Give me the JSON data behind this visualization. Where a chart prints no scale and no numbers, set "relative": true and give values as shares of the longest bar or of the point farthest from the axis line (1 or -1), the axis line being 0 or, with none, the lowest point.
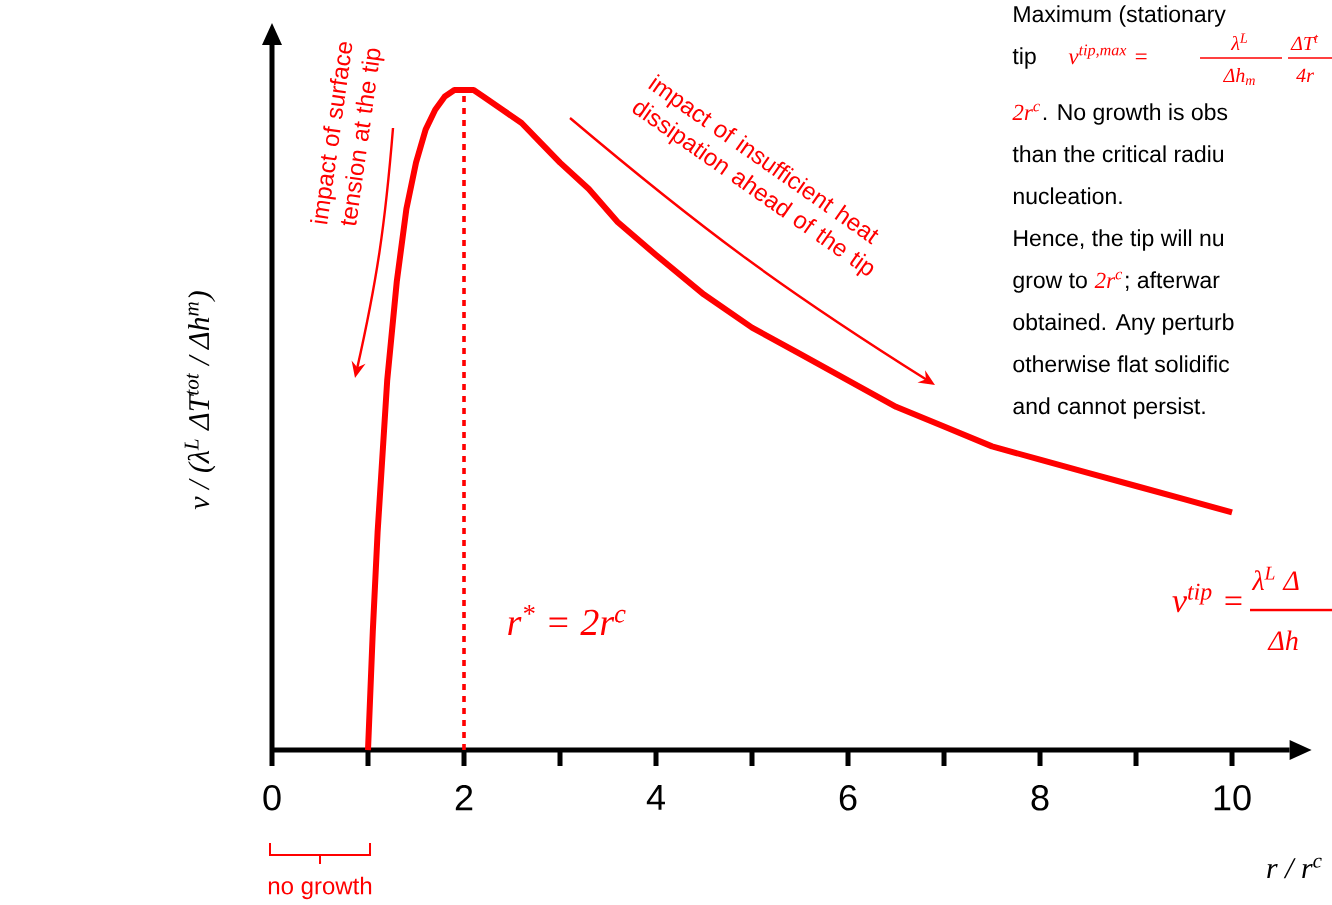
{
  "chart_data": {
    "type": "line",
    "relative": true,
    "xlabel": "r / r$^{c}$",
    "ylabel": "v / (λ$^{L}$ ΔT$^{tot}$ / Δh$^{m}$)",
    "x": [
      1,
      1.05,
      1.1,
      1.2,
      1.3,
      1.4,
      1.5,
      1.6,
      1.7,
      1.8,
      1.9,
      2,
      2.1,
      2.2,
      2.4,
      2.6,
      2.8,
      3,
      3.3,
      3.6,
      4,
      4.5,
      5,
      5.5,
      6,
      6.5,
      7,
      7.5,
      8,
      8.5,
      9,
      9.5,
      10
    ],
    "series": [
      {
        "color": "#ff0000",
        "values": [
          0,
          0.18,
          0.33,
          0.56,
          0.71,
          0.82,
          0.89,
          0.94,
          0.97,
          0.99,
          1,
          1,
          1,
          0.99,
          0.97,
          0.95,
          0.92,
          0.89,
          0.85,
          0.8,
          0.75,
          0.69,
          0.64,
          0.6,
          0.56,
          0.52,
          0.49,
          0.46,
          0.44,
          0.42,
          0.4,
          0.38,
          0.36
        ]
      }
    ],
    "xlim": [
      0,
      10.6
    ],
    "xticks": [
      0,
      {
        "value": 1,
        "label": null
      },
      2,
      {
        "value": 3,
        "label": null
      },
      4,
      {
        "value": 5,
        "label": null
      },
      6,
      {
        "value": 7,
        "label": null
      },
      8,
      {
        "value": 9,
        "label": null
      },
      10
    ],
    "ref_lines": [
      {
        "axis": "x",
        "value": 2,
        "label": "r$^{*}$ = 2r$^{c}$",
        "color": "#ff0000",
        "line_style": "dashed"
      }
    ],
    "line_style": "solid",
    "annotations": [
      "impact of surface tension at the tip",
      "impact of insufficient heat dissipation ahead of the tip",
      "no growth",
      "v$^{tip}$ =",
      "λ$^{L}$ Δ",
      "Δh",
      "Maximum (stationary",
      "tip",
      "v$^{tip,max}$ =",
      "λ$^{L}$",
      "Δh$_{m}$",
      "ΔT$^{t}$",
      "4r",
      "2r$^{c}$",
      ". No growth is obs",
      "than the critical radiu",
      "nucleation.",
      "Hence, the tip will nu",
      "grow to",
      "2r$^{c}$",
      "; afterwar",
      "obtained. Any perturb",
      "otherwise flat solidific",
      "and cannot persist."
    ]
  }
}
